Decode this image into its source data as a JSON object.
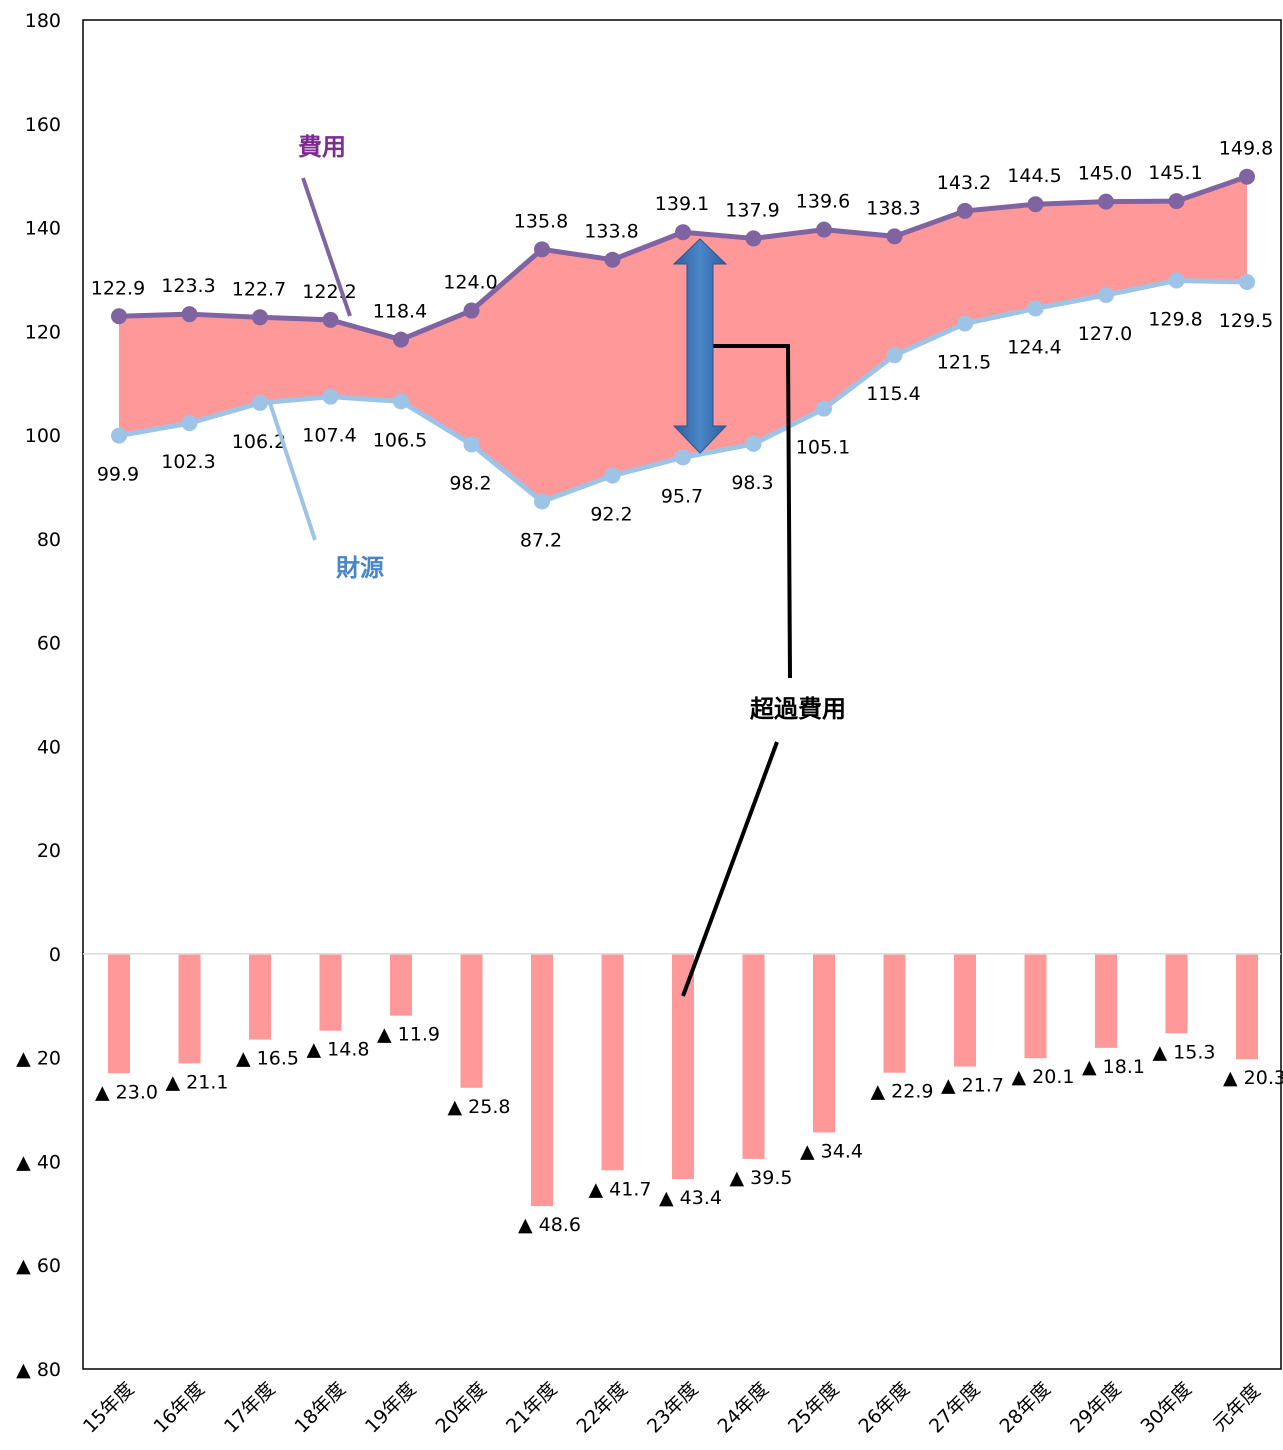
{
  "chart_data": {
    "type": "line",
    "categories": [
      "15年度",
      "16年度",
      "17年度",
      "18年度",
      "19年度",
      "20年度",
      "21年度",
      "22年度",
      "23年度",
      "24年度",
      "25年度",
      "26年度",
      "27年度",
      "28年度",
      "29年度",
      "30年度",
      "元年度"
    ],
    "series": [
      {
        "name": "費用",
        "type": "line",
        "color": "#8064a2",
        "values": [
          122.9,
          123.3,
          122.7,
          122.2,
          118.4,
          124.0,
          135.8,
          133.8,
          139.1,
          137.9,
          139.6,
          138.3,
          143.2,
          144.5,
          145.0,
          145.1,
          149.8
        ],
        "labels": [
          "122.9",
          "123.3",
          "122.7",
          "122.2",
          "118.4",
          "124.0",
          "135.8",
          "133.8",
          "139.1",
          "137.9",
          "139.6",
          "138.3",
          "143.2",
          "144.5",
          "145.0",
          "145.1",
          "149.8"
        ]
      },
      {
        "name": "財源",
        "type": "line",
        "color": "#9dc3e6",
        "values": [
          99.9,
          102.3,
          106.2,
          107.4,
          106.5,
          98.2,
          87.2,
          92.2,
          95.7,
          98.3,
          105.1,
          115.4,
          121.5,
          124.4,
          127.0,
          129.8,
          129.5
        ],
        "labels": [
          "99.9",
          "102.3",
          "106.2",
          "107.4",
          "106.5",
          "98.2",
          "87.2",
          "92.2",
          "95.7",
          "98.3",
          "105.1",
          "115.4",
          "121.5",
          "124.4",
          "127.0",
          "129.8",
          "129.5"
        ]
      },
      {
        "type": "bar",
        "color": "#ff9999",
        "values": [
          -23.0,
          -21.1,
          -16.5,
          -14.8,
          -11.9,
          -25.8,
          -48.6,
          -41.7,
          -43.4,
          -39.5,
          -34.4,
          -22.9,
          -21.7,
          -20.1,
          -18.1,
          -15.3,
          -20.3
        ],
        "labels": [
          "▲ 23.0",
          "▲ 21.1",
          "▲ 16.5",
          "▲ 14.8",
          "▲ 11.9",
          "▲ 25.8",
          "▲ 48.6",
          "▲ 41.7",
          "▲ 43.4",
          "▲ 39.5",
          "▲ 34.4",
          "▲ 22.9",
          "▲ 21.7",
          "▲ 20.1",
          "▲ 18.1",
          "▲ 15.3",
          "▲ 20.3"
        ]
      }
    ],
    "ylim": [
      -80,
      180
    ],
    "yticks": [
      180,
      160,
      140,
      120,
      100,
      80,
      60,
      40,
      20,
      0,
      -20,
      -40,
      -60,
      -80
    ],
    "ytick_labels": [
      "180",
      "160",
      "140",
      "120",
      "100",
      "80",
      "60",
      "40",
      "20",
      "0",
      "▲ 20",
      "▲ 40",
      "▲ 60",
      "▲ 80"
    ],
    "fill_between": {
      "color": "#ff9999"
    },
    "annotations": [
      {
        "text": "費用",
        "color": "#7b2c8f"
      },
      {
        "text": "財源",
        "color": "#4a86c5"
      },
      {
        "text": "超過費用",
        "color": "#000000"
      }
    ],
    "grid": false,
    "legend": "none"
  }
}
